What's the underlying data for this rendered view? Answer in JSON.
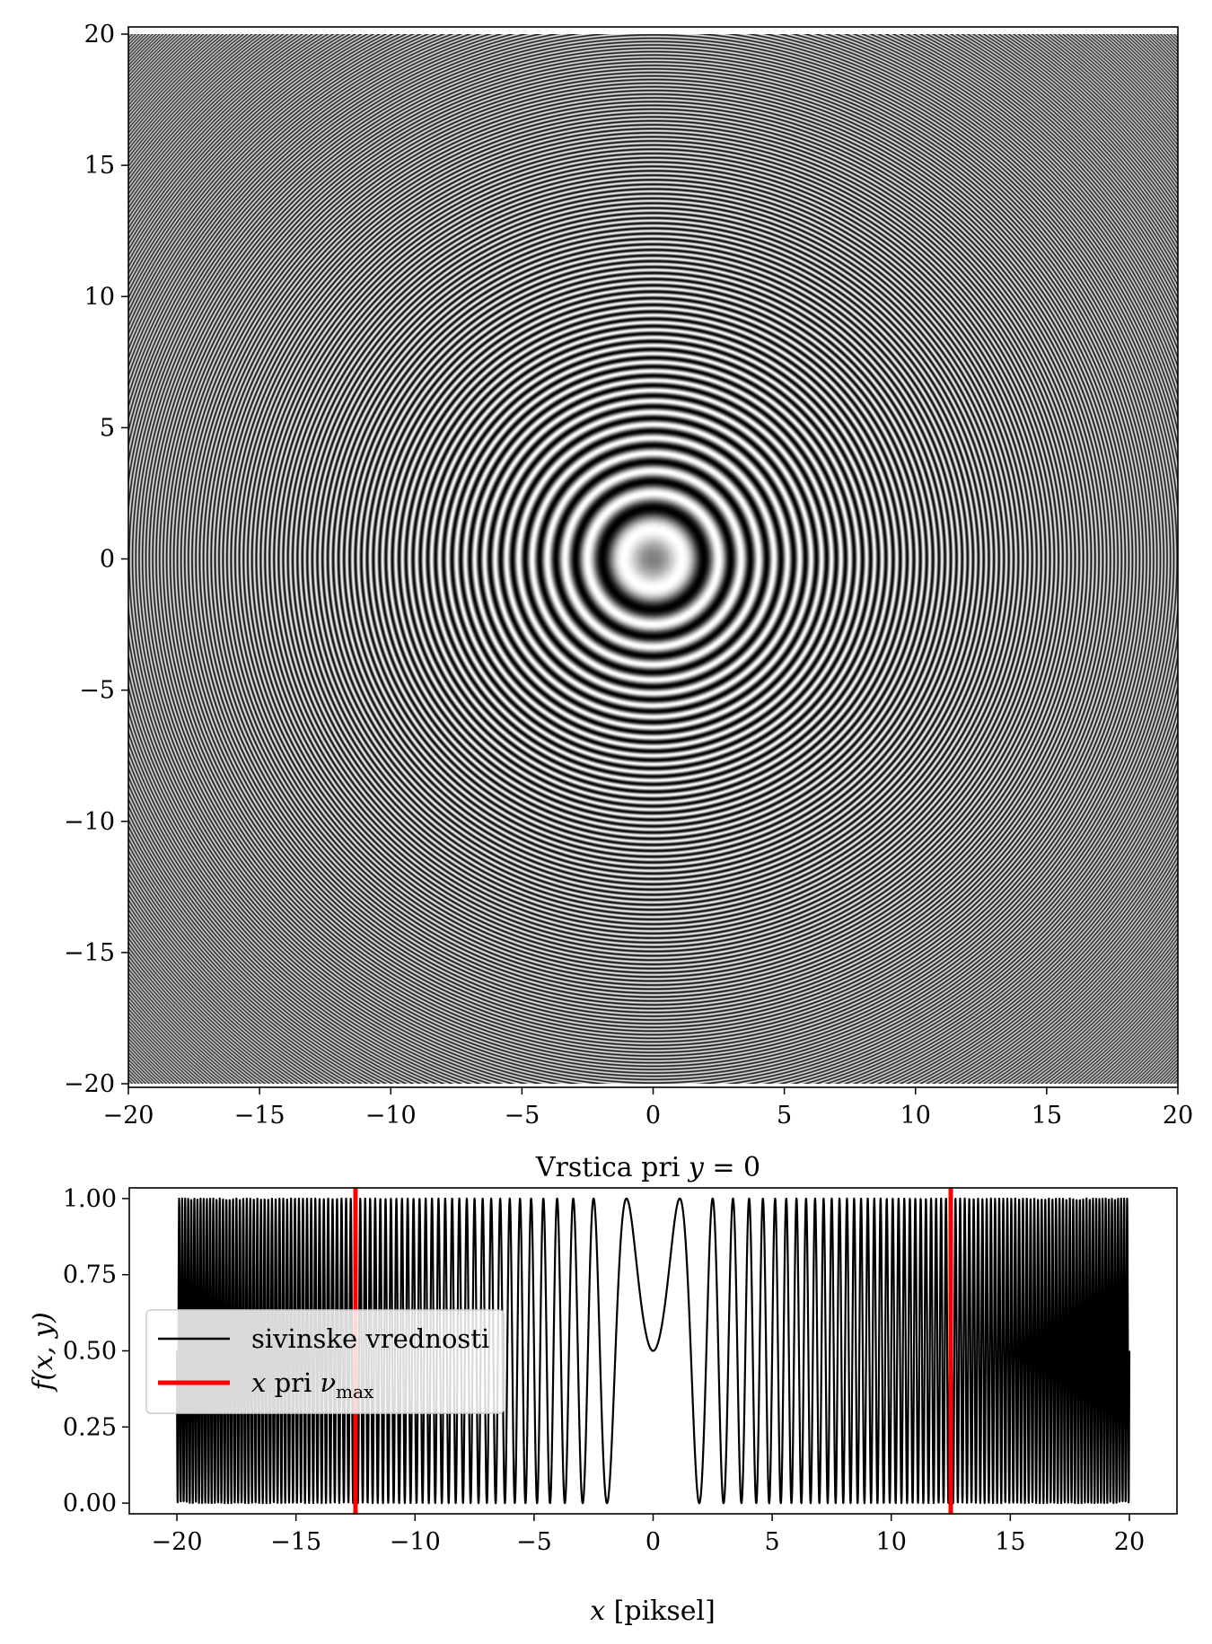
{
  "chart_data": [
    {
      "type": "heatmap",
      "title": "",
      "xlabel": "",
      "ylabel": "",
      "xlim": [
        -20,
        20
      ],
      "ylim": [
        -20,
        20
      ],
      "colormap": "gray",
      "function": "f(x,y)",
      "xticks": [
        -20,
        -15,
        -10,
        -5,
        0,
        5,
        10,
        15,
        20
      ],
      "yticks": [
        -20,
        -15,
        -10,
        -5,
        0,
        5,
        10,
        15,
        20
      ],
      "xtick_labels": [
        "−20",
        "−15",
        "−10",
        "−5",
        "0",
        "5",
        "10",
        "15",
        "20"
      ],
      "ytick_labels": [
        "−20",
        "−15",
        "−10",
        "−5",
        "0",
        "5",
        "10",
        "15",
        "20"
      ]
    },
    {
      "type": "line",
      "title_prefix": "Vrstica pri ",
      "title_var": "y",
      "title_suffix": " = 0",
      "xlabel_var": "x",
      "xlabel_unit": " [piksel]",
      "ylabel": "f(x, y)",
      "xlim": [
        -22,
        22
      ],
      "ylim": [
        -0.035,
        1.035
      ],
      "grid": false,
      "legend_position": "center-left",
      "xticks": [
        -20,
        -15,
        -10,
        -5,
        0,
        5,
        10,
        15,
        20
      ],
      "yticks": [
        0.0,
        0.25,
        0.5,
        0.75,
        1.0
      ],
      "xtick_labels": [
        "−20",
        "−15",
        "−10",
        "−5",
        "0",
        "5",
        "10",
        "15",
        "20"
      ],
      "ytick_labels": [
        "0.00",
        "0.25",
        "0.50",
        "0.75",
        "1.00"
      ],
      "series": [
        {
          "name": "sivinske vrednosti",
          "color": "#000000",
          "function": "0.5 + 0.5*sin(pi*x^2/2.5)",
          "x_range": [
            -20,
            20
          ]
        },
        {
          "name_var": "x",
          "name_mid": " pri ",
          "name_sym": "ν",
          "name_sub": "max",
          "color": "#ff0000",
          "type": "vline",
          "x": [
            -12.5,
            12.5
          ]
        }
      ]
    }
  ]
}
